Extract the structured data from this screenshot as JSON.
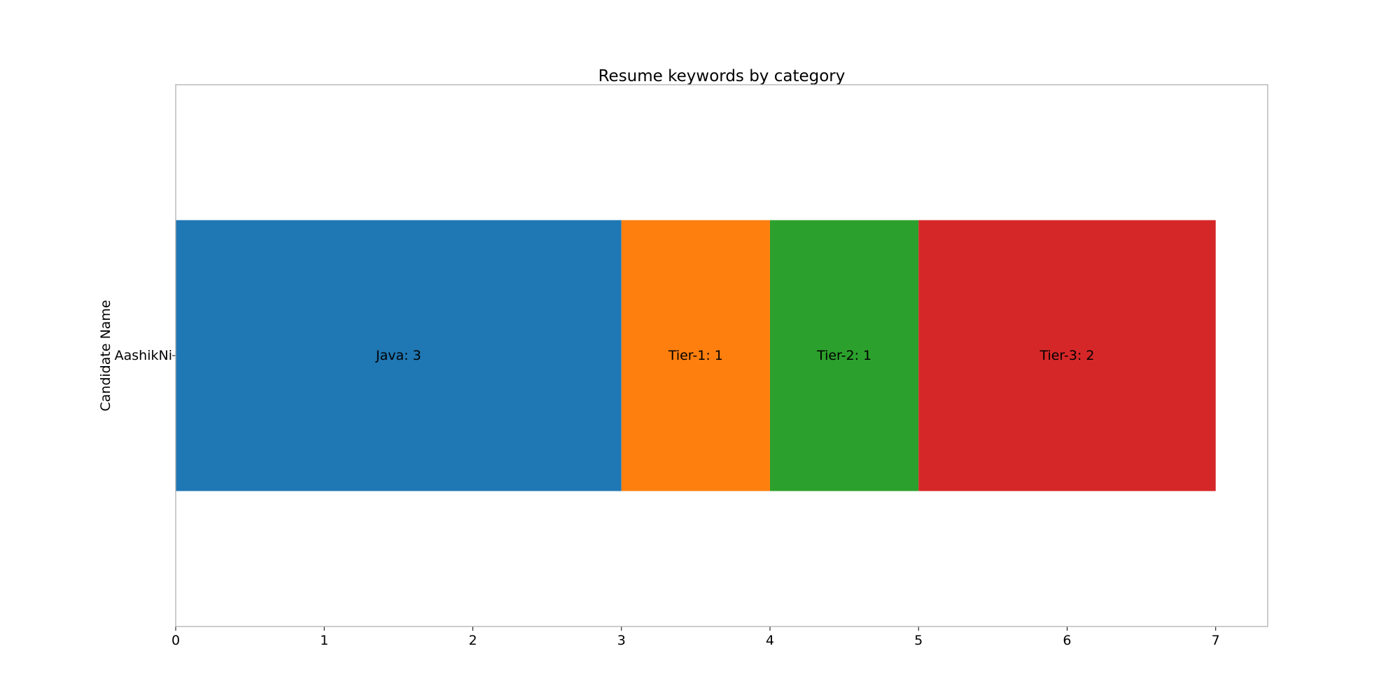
{
  "chart_data": {
    "type": "bar",
    "orientation": "horizontal",
    "stacked": true,
    "title": "Resume keywords by category",
    "ylabel": "Candidate Name",
    "xlabel": "",
    "categories": [
      "AashikNi"
    ],
    "series": [
      {
        "key": "Java",
        "values": [
          3
        ],
        "color": "#1f77b4",
        "labels": [
          "Java: 3"
        ]
      },
      {
        "key": "Tier-1",
        "values": [
          1
        ],
        "color": "#ff7f0e",
        "labels": [
          "Tier-1: 1"
        ]
      },
      {
        "key": "Tier-2",
        "values": [
          1
        ],
        "color": "#2ca02c",
        "labels": [
          "Tier-2: 1"
        ]
      },
      {
        "key": "Tier-3",
        "values": [
          2
        ],
        "color": "#d62728",
        "labels": [
          "Tier-3: 2"
        ]
      }
    ],
    "xlim": [
      0,
      7.35
    ],
    "xticks": [
      "0",
      "1",
      "2",
      "3",
      "4",
      "5",
      "6",
      "7"
    ],
    "grid": false,
    "legend": "none"
  }
}
